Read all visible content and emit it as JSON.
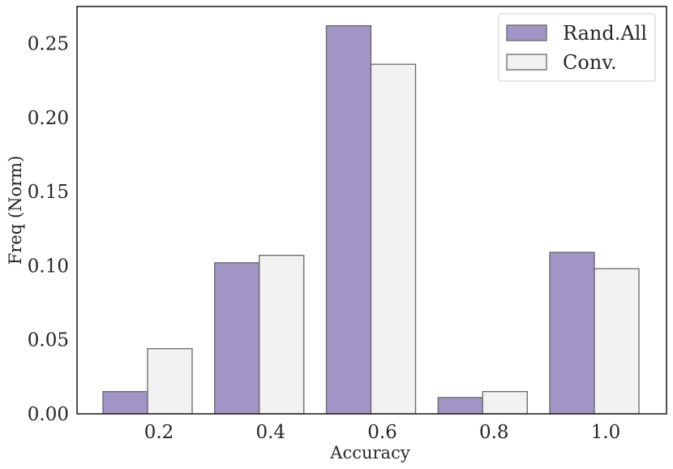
{
  "chart_data": {
    "type": "bar",
    "categories": [
      "0.2",
      "0.4",
      "0.6",
      "0.8",
      "1.0"
    ],
    "series": [
      {
        "name": "Rand.All",
        "values": [
          0.015,
          0.102,
          0.262,
          0.011,
          0.109
        ],
        "color": "#a195c5"
      },
      {
        "name": "Conv.",
        "values": [
          0.044,
          0.107,
          0.236,
          0.015,
          0.098
        ],
        "color": "#f2f2f2"
      }
    ],
    "xlabel": "Accuracy",
    "ylabel": "Freq (Norm)",
    "ylim": [
      0,
      0.275
    ],
    "yticks": [
      "0.00",
      "0.05",
      "0.10",
      "0.15",
      "0.20",
      "0.25"
    ],
    "ytick_values": [
      0,
      0.05,
      0.1,
      0.15,
      0.2,
      0.25
    ],
    "grid": false,
    "legend_position": "top-right",
    "edge_color": "#666666"
  }
}
